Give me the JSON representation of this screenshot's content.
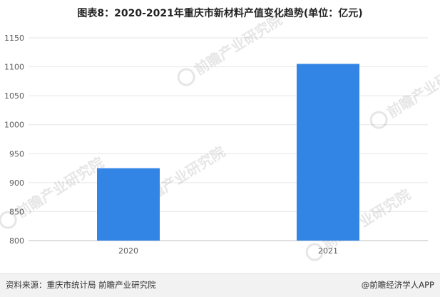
{
  "chart_data": {
    "type": "bar",
    "title": "图表8：2020-2021年重庆市新材料产值变化趋势(单位：亿元)",
    "categories": [
      "2020",
      "2021"
    ],
    "values": [
      925,
      1105
    ],
    "ylim": [
      800,
      1150
    ],
    "yticks": [
      800,
      850,
      900,
      950,
      1000,
      1050,
      1100,
      1150
    ],
    "xlabel": "",
    "ylabel": "",
    "grid": true,
    "bar_color": "#3385e5"
  },
  "footer": {
    "source": "资料来源：重庆市统计局 前瞻产业研究院",
    "brand": "@前瞻经济学人APP"
  },
  "watermark": {
    "logo_text": "前瞻产业研究院"
  }
}
